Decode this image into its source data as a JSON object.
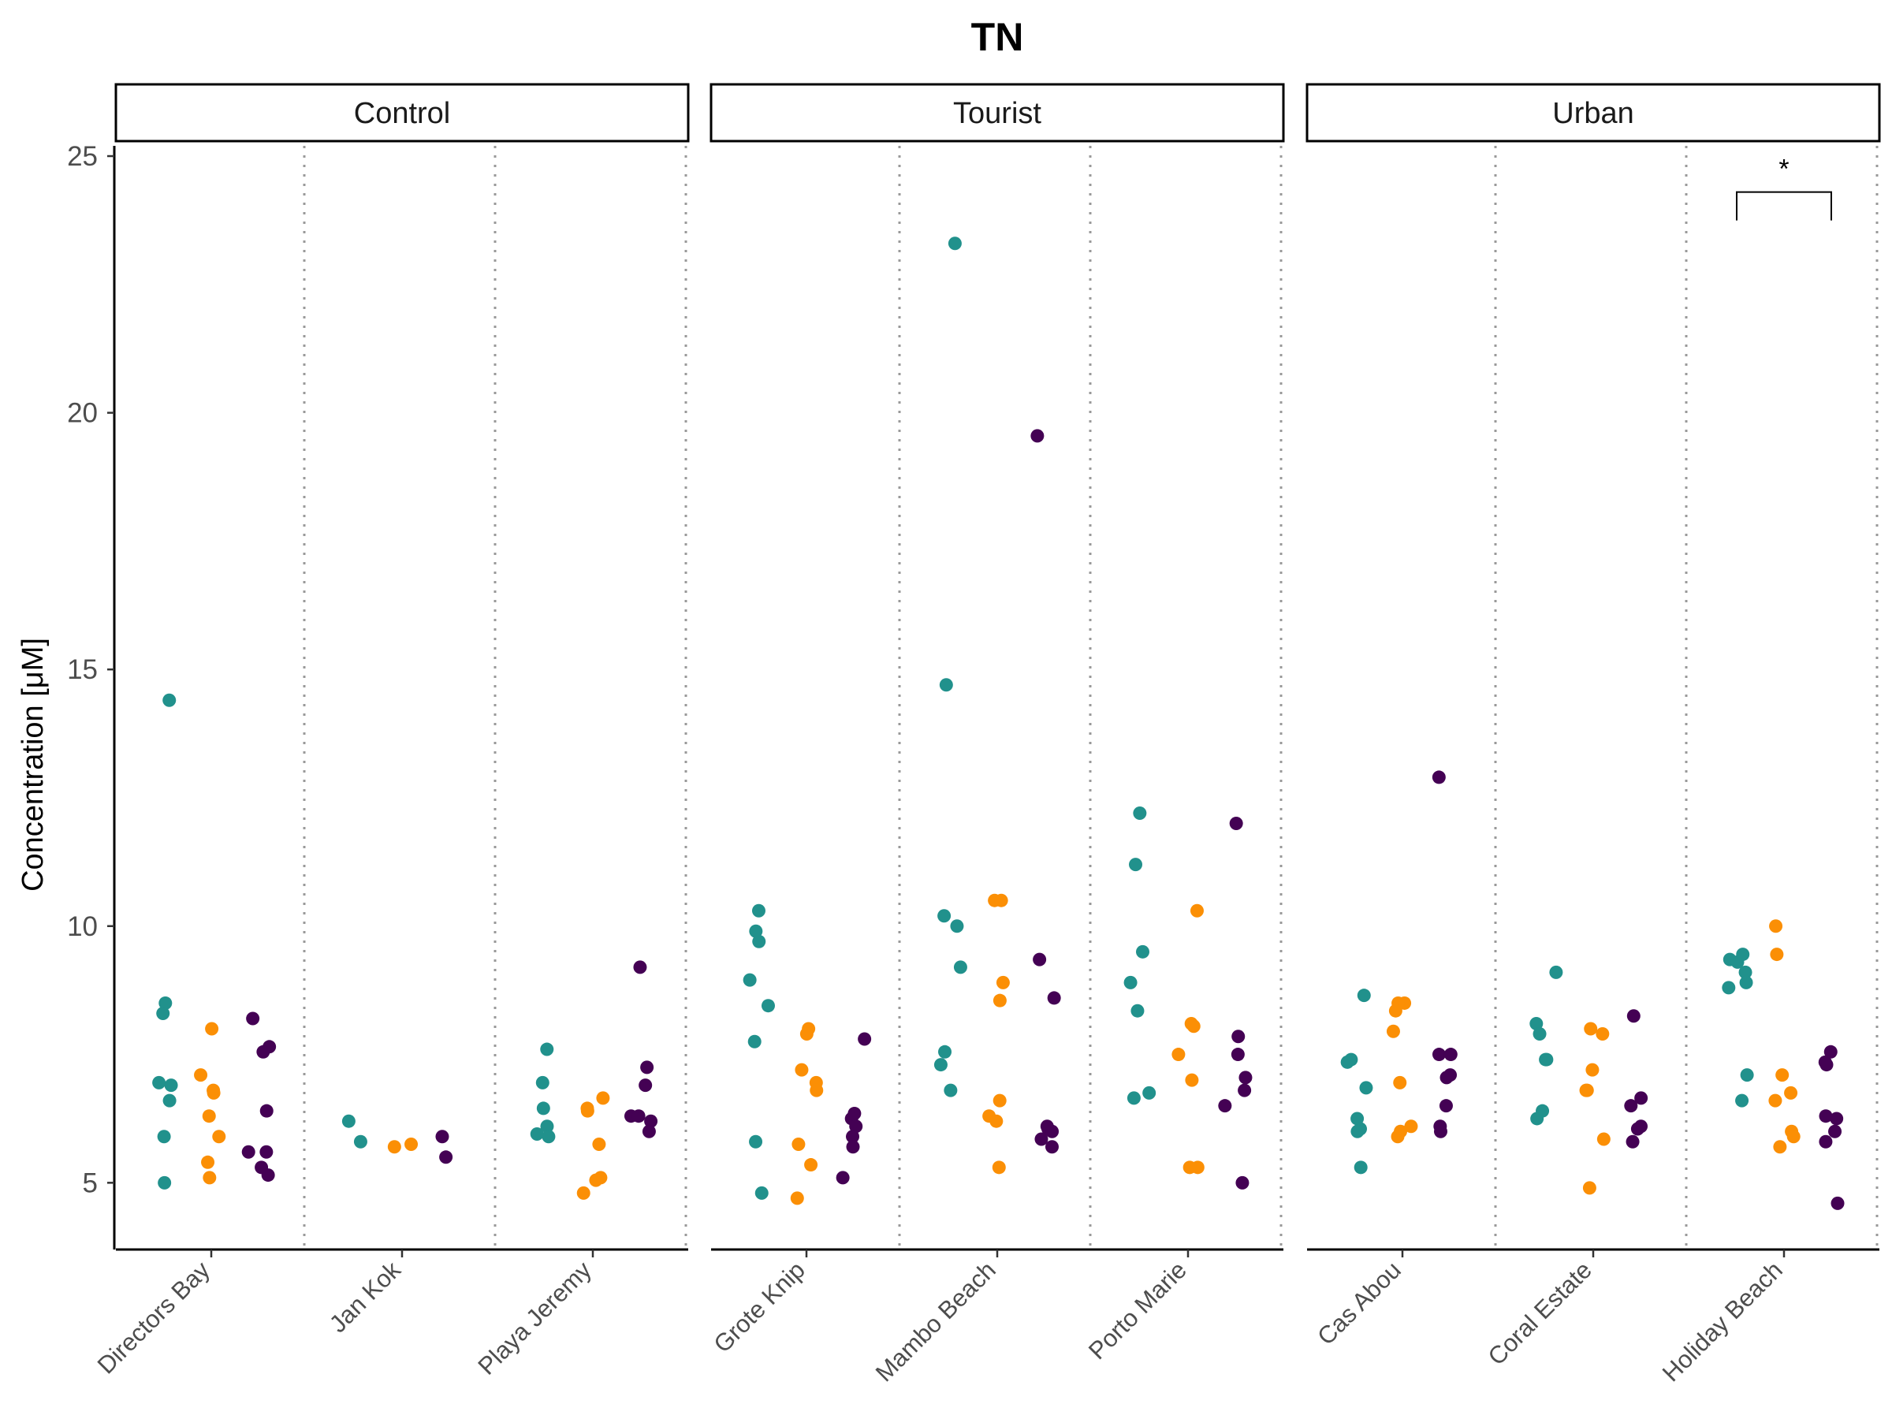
{
  "chart_data": {
    "type": "scatter",
    "title": "TN",
    "ylabel": "Concentration [μM]",
    "xlabel": "",
    "ylim": [
      3.7,
      25.2
    ],
    "yticks": [
      5,
      10,
      15,
      20,
      25
    ],
    "grid": false,
    "legend": "none",
    "series_colors": [
      "#21918c",
      "#fb8f05",
      "#440154"
    ],
    "panels": [
      {
        "name": "Control",
        "sites": [
          {
            "name": "Directors Bay",
            "groups": [
              [
                14.4,
                8.5,
                8.3,
                6.95,
                6.9,
                6.6,
                5.9,
                5.0
              ],
              [
                8.0,
                7.1,
                6.8,
                6.75,
                6.3,
                5.9,
                5.4,
                5.1
              ],
              [
                8.2,
                7.65,
                7.55,
                6.4,
                5.6,
                5.6,
                5.3,
                5.15
              ]
            ]
          },
          {
            "name": "Jan Kok",
            "groups": [
              [
                6.2,
                5.8
              ],
              [
                5.7,
                5.75
              ],
              [
                5.9,
                5.5
              ]
            ]
          },
          {
            "name": "Playa Jeremy",
            "groups": [
              [
                7.6,
                6.95,
                6.45,
                6.1,
                5.95,
                5.9
              ],
              [
                6.65,
                6.45,
                6.4,
                5.75,
                5.1,
                5.05,
                4.8
              ],
              [
                9.2,
                7.25,
                6.9,
                6.3,
                6.3,
                6.2,
                6.0
              ]
            ]
          }
        ]
      },
      {
        "name": "Tourist",
        "sites": [
          {
            "name": "Grote Knip",
            "groups": [
              [
                10.3,
                9.9,
                9.7,
                8.95,
                8.45,
                7.75,
                5.8,
                4.8
              ],
              [
                8.0,
                7.9,
                7.2,
                6.95,
                6.8,
                5.75,
                5.35,
                4.7
              ],
              [
                7.8,
                6.35,
                6.25,
                6.1,
                5.9,
                5.7,
                5.1
              ]
            ]
          },
          {
            "name": "Mambo Beach",
            "groups": [
              [
                23.3,
                14.7,
                10.2,
                10.0,
                9.2,
                7.55,
                7.3,
                6.8
              ],
              [
                10.5,
                10.5,
                8.9,
                8.55,
                6.6,
                6.3,
                6.2,
                5.3
              ],
              [
                19.55,
                9.35,
                8.6,
                6.1,
                6.05,
                6.0,
                5.85,
                5.7
              ]
            ]
          },
          {
            "name": "Porto Marie",
            "groups": [
              [
                12.2,
                11.2,
                9.5,
                8.9,
                8.35,
                6.75,
                6.65
              ],
              [
                10.3,
                8.1,
                8.05,
                7.5,
                7.0,
                5.3,
                5.3
              ],
              [
                12.0,
                7.85,
                7.5,
                7.05,
                6.8,
                6.5,
                5.0
              ]
            ]
          }
        ]
      },
      {
        "name": "Urban",
        "sites": [
          {
            "name": "Cas Abou",
            "groups": [
              [
                8.65,
                7.4,
                7.35,
                6.85,
                6.25,
                6.05,
                6.0,
                5.3
              ],
              [
                8.5,
                8.5,
                8.35,
                7.95,
                6.95,
                6.1,
                6.0,
                5.9
              ],
              [
                12.9,
                7.5,
                7.5,
                7.1,
                7.05,
                6.5,
                6.1,
                6.0
              ]
            ]
          },
          {
            "name": "Coral Estate",
            "groups": [
              [
                9.1,
                8.1,
                7.9,
                7.4,
                7.4,
                6.4,
                6.25
              ],
              [
                8.0,
                7.9,
                7.2,
                6.8,
                6.8,
                5.85,
                4.9
              ],
              [
                8.25,
                6.65,
                6.5,
                6.1,
                6.05,
                5.8
              ]
            ]
          },
          {
            "name": "Holiday Beach",
            "groups": [
              [
                9.45,
                9.35,
                9.3,
                9.1,
                8.9,
                8.8,
                7.1,
                6.6
              ],
              [
                10.0,
                9.45,
                7.1,
                6.75,
                6.6,
                6.0,
                5.9,
                5.7
              ],
              [
                7.55,
                7.35,
                7.3,
                6.3,
                6.25,
                6.0,
                5.8,
                4.6
              ]
            ]
          }
        ],
        "significance": {
          "label": "*",
          "site": "Holiday Beach",
          "from_group": 0,
          "to_group": 2,
          "y": 24.3
        }
      }
    ]
  }
}
